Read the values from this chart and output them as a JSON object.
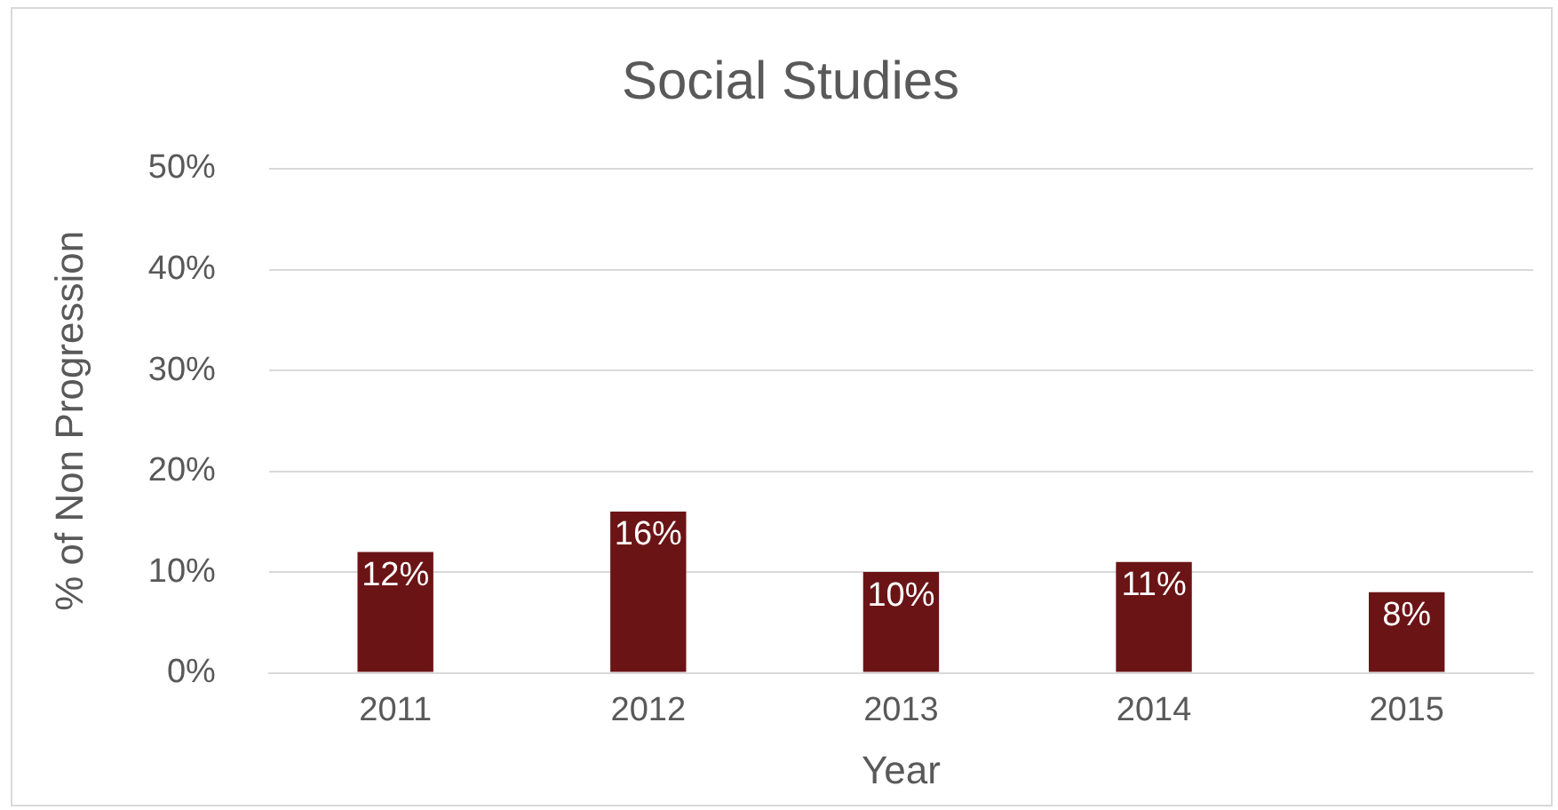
{
  "chart_data": {
    "type": "bar",
    "title": "Social Studies",
    "xlabel": "Year",
    "ylabel": "% of Non Progression",
    "categories": [
      "2011",
      "2012",
      "2013",
      "2014",
      "2015"
    ],
    "values": [
      12,
      16,
      10,
      11,
      8
    ],
    "value_labels": [
      "12%",
      "16%",
      "10%",
      "11%",
      "8%"
    ],
    "color": "#6b1416",
    "ylim": [
      0,
      50
    ],
    "yticks": [
      {
        "value": 0,
        "label": "0%"
      },
      {
        "value": 10,
        "label": "10%"
      },
      {
        "value": 20,
        "label": "20%"
      },
      {
        "value": 30,
        "label": "30%"
      },
      {
        "value": 40,
        "label": "40%"
      },
      {
        "value": 50,
        "label": "50%"
      }
    ],
    "grid": "y",
    "legend": false
  }
}
